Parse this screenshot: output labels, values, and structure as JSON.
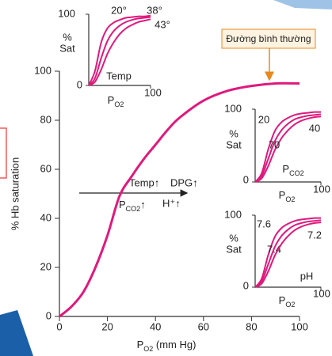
{
  "chart_data": [
    {
      "type": "line",
      "x": [
        0,
        5,
        10,
        15,
        20,
        25,
        30,
        35,
        40,
        45,
        50,
        60,
        70,
        80,
        90,
        100
      ],
      "xlabel": [
        "P",
        "O2",
        " (mm Hg)"
      ],
      "ylabel": "% Hb saturation",
      "xlim": [
        0,
        100
      ],
      "ylim": [
        0,
        100
      ],
      "xticks": [
        0,
        20,
        40,
        60,
        80,
        100
      ],
      "yticks": [
        0,
        20,
        40,
        60,
        80,
        100
      ],
      "series": [
        {
          "color": "#e0197d",
          "values": [
            0,
            4,
            10,
            20,
            33,
            49,
            57,
            64,
            70,
            76,
            81,
            88,
            92,
            94,
            95,
            95
          ]
        }
      ],
      "annotations": {
        "normal": "Đường bình thường",
        "shift_upper": [
          "Temp↑",
          "DPG↑"
        ],
        "shift_lower": [
          [
            "P",
            "CO2",
            "↑"
          ],
          "H⁺↑"
        ]
      }
    },
    {
      "type": "line",
      "x": [
        0,
        10,
        20,
        30,
        40,
        50,
        60,
        70,
        80,
        90,
        100
      ],
      "xlabel": [
        "P",
        "O2"
      ],
      "ylabel_lines": [
        "%",
        "Sat"
      ],
      "annotation": "Temp",
      "xlim": [
        0,
        100
      ],
      "ylim": [
        0,
        100
      ],
      "xticks": [
        100
      ],
      "yticks": [
        0,
        100
      ],
      "series": [
        {
          "name": "20°",
          "color": "#e0197d",
          "values": [
            0,
            20,
            60,
            80,
            88,
            92,
            95,
            96,
            97,
            97,
            98
          ]
        },
        {
          "name": "38°",
          "color": "#e0197d",
          "values": [
            0,
            10,
            38,
            62,
            76,
            84,
            89,
            92,
            94,
            95,
            96
          ]
        },
        {
          "name": "43°",
          "color": "#e0197d",
          "values": [
            0,
            5,
            22,
            44,
            60,
            72,
            80,
            85,
            89,
            91,
            93
          ]
        }
      ]
    },
    {
      "type": "line",
      "x": [
        0,
        10,
        20,
        30,
        40,
        50,
        60,
        70,
        80,
        90,
        100
      ],
      "xlabel": [
        "P",
        "O2"
      ],
      "ylabel_lines": [
        "%",
        "Sat"
      ],
      "annotation": [
        "P",
        "CO2"
      ],
      "xlim": [
        0,
        100
      ],
      "ylim": [
        0,
        100
      ],
      "xticks": [
        100
      ],
      "yticks": [
        0,
        100
      ],
      "series": [
        {
          "name": "20",
          "color": "#e0197d",
          "values": [
            0,
            12,
            45,
            70,
            82,
            88,
            92,
            94,
            95,
            96,
            96
          ]
        },
        {
          "name": "40",
          "color": "#e0197d",
          "values": [
            0,
            8,
            32,
            56,
            71,
            80,
            86,
            89,
            91,
            92,
            93
          ]
        },
        {
          "name": "70",
          "color": "#e0197d",
          "values": [
            0,
            5,
            22,
            44,
            60,
            71,
            79,
            84,
            87,
            89,
            90
          ]
        }
      ]
    },
    {
      "type": "line",
      "x": [
        0,
        10,
        20,
        30,
        40,
        50,
        60,
        70,
        80,
        90,
        100
      ],
      "xlabel": [
        "P",
        "O2"
      ],
      "ylabel_lines": [
        "%",
        "Sat"
      ],
      "annotation": "pH",
      "xlim": [
        0,
        100
      ],
      "ylim": [
        0,
        100
      ],
      "xticks": [
        100
      ],
      "yticks": [
        0,
        100
      ],
      "series": [
        {
          "name": "7.6",
          "color": "#e0197d",
          "values": [
            0,
            12,
            45,
            70,
            82,
            88,
            92,
            94,
            95,
            96,
            96
          ]
        },
        {
          "name": "7.4",
          "color": "#e0197d",
          "values": [
            0,
            8,
            32,
            56,
            71,
            80,
            86,
            89,
            91,
            92,
            93
          ]
        },
        {
          "name": "7.2",
          "color": "#e0197d",
          "values": [
            0,
            5,
            22,
            44,
            60,
            71,
            79,
            84,
            87,
            89,
            90
          ]
        }
      ]
    }
  ]
}
